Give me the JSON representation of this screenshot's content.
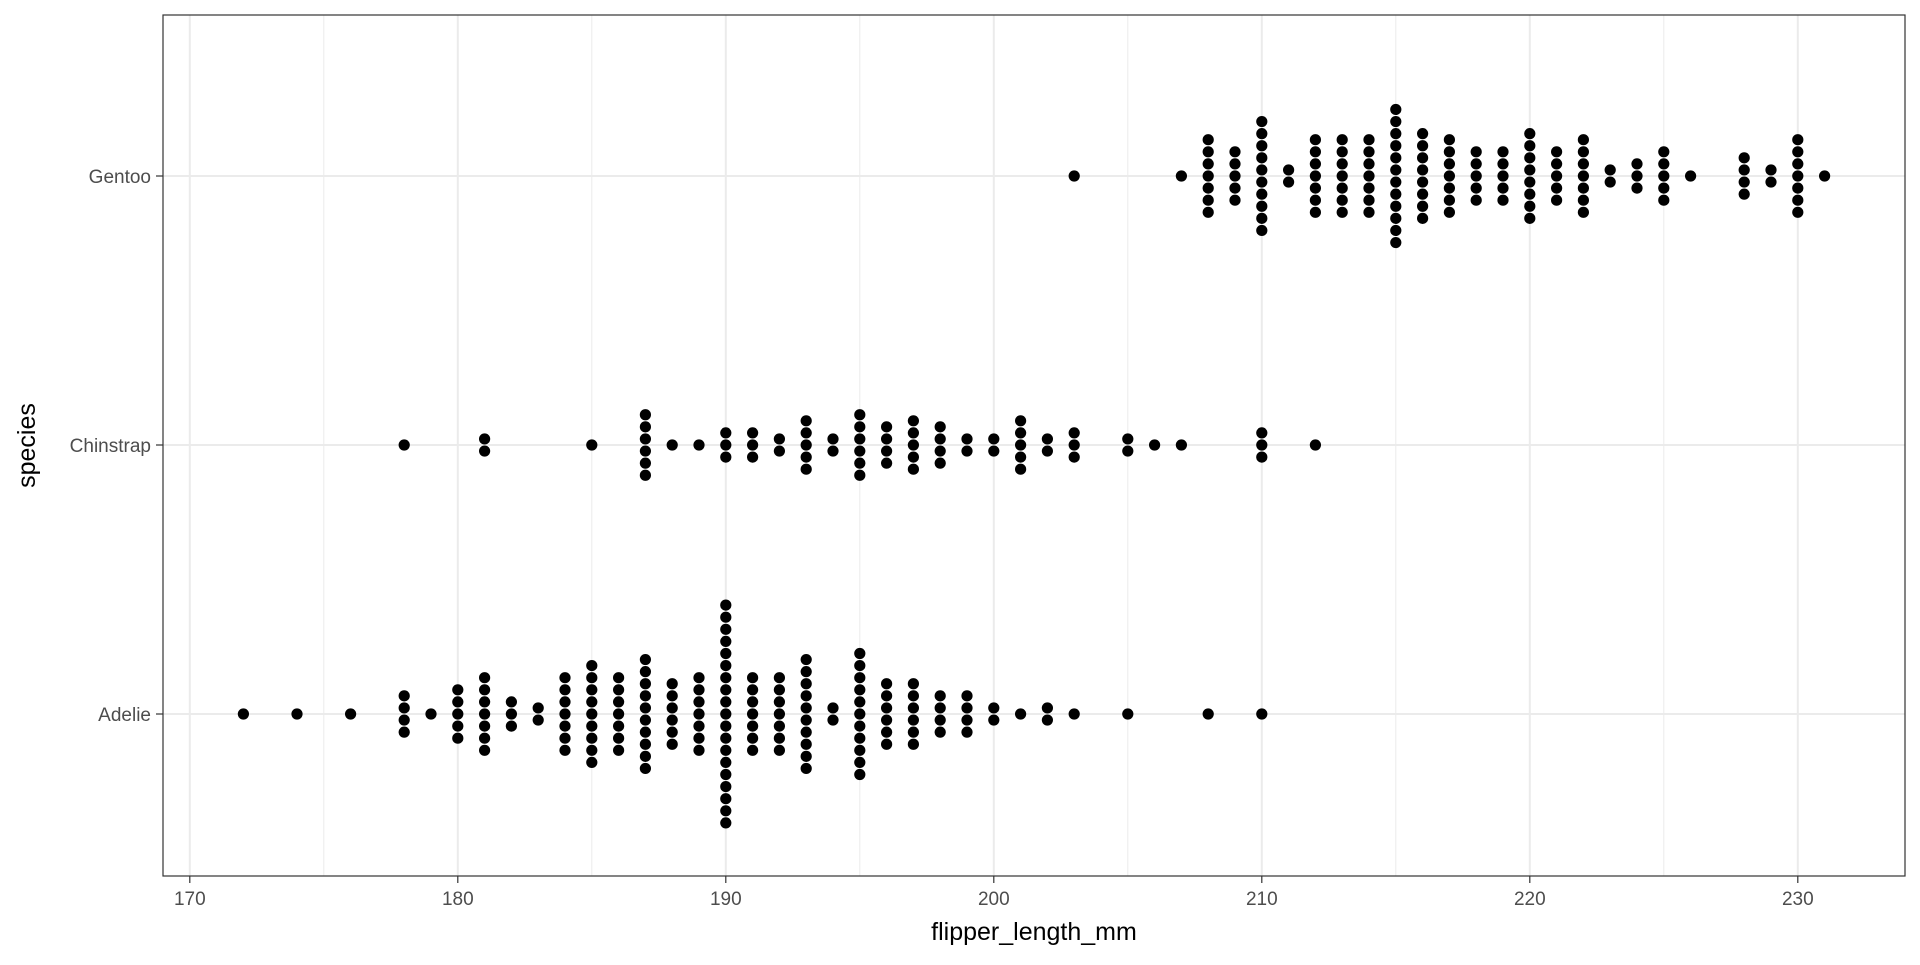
{
  "chart_data": {
    "type": "dotplot",
    "xlabel": "flipper_length_mm",
    "ylabel": "species",
    "xlim": [
      169,
      234
    ],
    "x_ticks": [
      170,
      180,
      190,
      200,
      210,
      220,
      230
    ],
    "x_tick_labels": [
      "170",
      "180",
      "190",
      "200",
      "210",
      "220",
      "230"
    ],
    "categories": [
      "Adelie",
      "Chinstrap",
      "Gentoo"
    ],
    "grid": true,
    "theme": "bw",
    "point_color": "#000000",
    "grid_color": "#ebebeb",
    "series": [
      {
        "category": "Adelie",
        "counts": [
          [
            172,
            1
          ],
          [
            174,
            1
          ],
          [
            176,
            1
          ],
          [
            178,
            4
          ],
          [
            179,
            1
          ],
          [
            180,
            5
          ],
          [
            181,
            7
          ],
          [
            182,
            3
          ],
          [
            183,
            2
          ],
          [
            184,
            7
          ],
          [
            185,
            9
          ],
          [
            186,
            7
          ],
          [
            187,
            10
          ],
          [
            188,
            6
          ],
          [
            189,
            7
          ],
          [
            190,
            19
          ],
          [
            191,
            7
          ],
          [
            192,
            7
          ],
          [
            193,
            10
          ],
          [
            194,
            2
          ],
          [
            195,
            11
          ],
          [
            196,
            6
          ],
          [
            197,
            6
          ],
          [
            198,
            4
          ],
          [
            199,
            4
          ],
          [
            200,
            2
          ],
          [
            201,
            1
          ],
          [
            202,
            2
          ],
          [
            203,
            1
          ],
          [
            205,
            1
          ],
          [
            208,
            1
          ],
          [
            210,
            1
          ]
        ]
      },
      {
        "category": "Chinstrap",
        "counts": [
          [
            178,
            1
          ],
          [
            181,
            2
          ],
          [
            185,
            1
          ],
          [
            187,
            6
          ],
          [
            188,
            1
          ],
          [
            189,
            1
          ],
          [
            190,
            3
          ],
          [
            191,
            3
          ],
          [
            192,
            2
          ],
          [
            193,
            5
          ],
          [
            194,
            2
          ],
          [
            195,
            6
          ],
          [
            196,
            4
          ],
          [
            197,
            5
          ],
          [
            198,
            4
          ],
          [
            199,
            2
          ],
          [
            200,
            2
          ],
          [
            201,
            5
          ],
          [
            202,
            2
          ],
          [
            203,
            3
          ],
          [
            205,
            2
          ],
          [
            206,
            1
          ],
          [
            207,
            1
          ],
          [
            210,
            3
          ],
          [
            212,
            1
          ]
        ]
      },
      {
        "category": "Gentoo",
        "counts": [
          [
            203,
            1
          ],
          [
            207,
            1
          ],
          [
            208,
            7
          ],
          [
            209,
            5
          ],
          [
            210,
            10
          ],
          [
            211,
            2
          ],
          [
            212,
            7
          ],
          [
            213,
            7
          ],
          [
            214,
            7
          ],
          [
            215,
            12
          ],
          [
            216,
            8
          ],
          [
            217,
            7
          ],
          [
            218,
            5
          ],
          [
            219,
            5
          ],
          [
            220,
            8
          ],
          [
            221,
            5
          ],
          [
            222,
            7
          ],
          [
            223,
            2
          ],
          [
            224,
            3
          ],
          [
            225,
            5
          ],
          [
            226,
            1
          ],
          [
            228,
            4
          ],
          [
            229,
            2
          ],
          [
            230,
            7
          ],
          [
            231,
            1
          ]
        ]
      }
    ]
  }
}
